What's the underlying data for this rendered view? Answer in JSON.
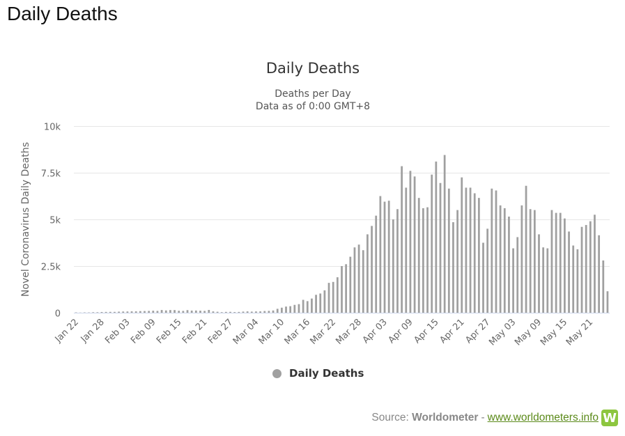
{
  "page_heading": "Daily Deaths",
  "source": {
    "prefix": "Source:",
    "brand": "Worldometer",
    "separator": "-",
    "link_text": "www.worldometers.info",
    "logo_letter": "W"
  },
  "colors": {
    "bar": "#a0a0a0",
    "grid": "#e6e6e6",
    "axis": "#ccd6eb",
    "logo": "#8dc63f",
    "link": "#5b8a1a"
  },
  "chart_data": {
    "type": "bar",
    "title": "Daily Deaths",
    "subtitle": [
      "Deaths per Day",
      "Data as of 0:00 GMT+8"
    ],
    "ylabel": "Novel Coronavirus Daily Deaths",
    "ylim": [
      0,
      10000
    ],
    "yticks": [
      0,
      2500,
      5000,
      7500,
      10000
    ],
    "ytick_labels": [
      "0",
      "2.5k",
      "5k",
      "7.5k",
      "10k"
    ],
    "grid": true,
    "legend": {
      "position": "bottom-center",
      "entries": [
        "Daily Deaths"
      ]
    },
    "tick_every": 6,
    "tick_labels": [
      "Jan 22",
      "Jan 28",
      "Feb 03",
      "Feb 09",
      "Feb 15",
      "Feb 21",
      "Feb 27",
      "Mar 04",
      "Mar 10",
      "Mar 16",
      "Mar 22",
      "Mar 28",
      "Apr 03",
      "Apr 09",
      "Apr 15",
      "Apr 21",
      "Apr 27",
      "May 03",
      "May 09",
      "May 15",
      "May 21"
    ],
    "series": [
      {
        "name": "Daily Deaths",
        "values": [
          17,
          8,
          16,
          14,
          26,
          26,
          38,
          43,
          46,
          45,
          57,
          64,
          66,
          73,
          73,
          86,
          89,
          97,
          108,
          97,
          146,
          122,
          143,
          142,
          106,
          98,
          139,
          115,
          118,
          109,
          97,
          150,
          71,
          52,
          29,
          44,
          47,
          35,
          42,
          60,
          71,
          58,
          68,
          70,
          90,
          100,
          120,
          210,
          270,
          330,
          350,
          420,
          460,
          690,
          620,
          760,
          960,
          1030,
          1200,
          1600,
          1650,
          1900,
          2500,
          2600,
          3000,
          3500,
          3650,
          3350,
          4200,
          4650,
          5200,
          6250,
          5950,
          6000,
          5000,
          5550,
          7850,
          6700,
          7600,
          7300,
          6150,
          5600,
          5650,
          7400,
          8100,
          6950,
          8450,
          6650,
          4850,
          5500,
          7250,
          6700,
          6700,
          6400,
          6150,
          3750,
          4500,
          6650,
          6550,
          5750,
          5600,
          5150,
          3450,
          4050,
          5750,
          6800,
          5550,
          5500,
          4200,
          3500,
          3450,
          5500,
          5350,
          5350,
          5050,
          4350,
          3600,
          3400,
          4600,
          4700,
          4900,
          5250,
          4150,
          2800,
          1150
        ]
      }
    ]
  }
}
